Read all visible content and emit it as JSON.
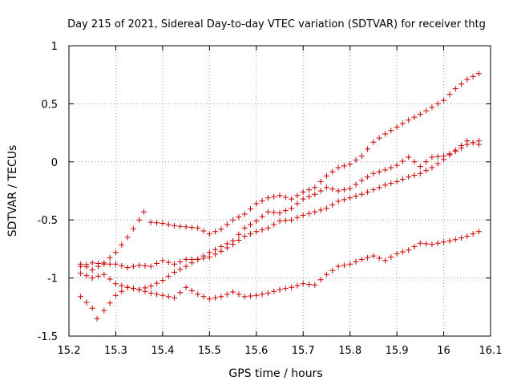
{
  "chart_data": {
    "type": "scatter",
    "title": "Day 215 of 2021, Sidereal Day-to-day VTEC variation (SDTVAR) for receiver thtg",
    "xlabel": "GPS time / hours",
    "ylabel": "SDTVAR / TECUs",
    "xlim": [
      15.2,
      16.1
    ],
    "ylim": [
      -1.5,
      1.0
    ],
    "xticks": [
      15.2,
      15.3,
      15.4,
      15.5,
      15.6,
      15.7,
      15.8,
      15.9,
      16.0,
      16.1
    ],
    "xtick_labels": [
      "15.2",
      "15.3",
      "15.4",
      "15.5",
      "15.6",
      "15.7",
      "15.8",
      "15.9",
      "16",
      "16.1"
    ],
    "yticks": [
      -1.5,
      -1.0,
      -0.5,
      0.0,
      0.5,
      1.0
    ],
    "ytick_labels": [
      "-1.5",
      "-1",
      "-0.5",
      "0",
      "0.5",
      "1"
    ],
    "grid": true,
    "marker": "+",
    "color": "#cc0000",
    "series": [
      {
        "x": [
          15.225,
          15.25,
          15.275,
          15.3,
          15.325,
          15.35,
          15.36,
          15.375,
          15.4,
          15.425,
          15.45,
          15.475,
          15.5,
          15.525,
          15.55,
          15.575,
          15.6,
          15.625,
          15.65,
          15.675,
          15.7,
          15.725,
          15.75,
          15.775,
          15.8,
          15.825,
          15.85,
          15.875,
          15.9,
          15.925,
          15.95,
          15.975,
          16.0,
          16.025,
          16.05,
          16.075
        ],
        "y": [
          -0.88,
          -0.93,
          -0.87,
          -0.78,
          -0.65,
          -0.5,
          -0.43,
          -0.52,
          -0.53,
          -0.55,
          -0.56,
          -0.57,
          -0.62,
          -0.58,
          -0.5,
          -0.45,
          -0.36,
          -0.31,
          -0.29,
          -0.32,
          -0.26,
          -0.22,
          -0.12,
          -0.05,
          -0.02,
          0.05,
          0.17,
          0.24,
          0.3,
          0.36,
          0.41,
          0.47,
          0.53,
          0.63,
          0.71,
          0.76
        ]
      },
      {
        "x": [
          15.225,
          15.25,
          15.275,
          15.3,
          15.325,
          15.35,
          15.375,
          15.4,
          15.425,
          15.45,
          15.475,
          15.5,
          15.525,
          15.55,
          15.575,
          15.6,
          15.625,
          15.65,
          15.675,
          15.7,
          15.725,
          15.75,
          15.775,
          15.8,
          15.825,
          15.85,
          15.875,
          15.9,
          15.925,
          15.95,
          15.975,
          16.0,
          16.025,
          16.05,
          16.075
        ],
        "y": [
          -0.96,
          -1.0,
          -0.97,
          -1.05,
          -1.08,
          -1.1,
          -1.07,
          -1.02,
          -0.95,
          -0.9,
          -0.84,
          -0.78,
          -0.73,
          -0.68,
          -0.57,
          -0.51,
          -0.43,
          -0.44,
          -0.4,
          -0.32,
          -0.28,
          -0.22,
          -0.25,
          -0.23,
          -0.16,
          -0.1,
          -0.07,
          -0.03,
          0.04,
          -0.04,
          0.04,
          0.05,
          0.09,
          0.15,
          0.18
        ]
      },
      {
        "x": [
          15.225,
          15.25,
          15.275,
          15.3,
          15.325,
          15.35,
          15.375,
          15.4,
          15.425,
          15.45,
          15.475,
          15.5,
          15.525,
          15.55,
          15.575,
          15.6,
          15.625,
          15.65,
          15.675,
          15.7,
          15.725,
          15.75,
          15.775,
          15.8,
          15.825,
          15.85,
          15.875,
          15.9,
          15.925,
          15.95,
          15.975,
          16.0,
          16.025,
          16.05,
          16.075
        ],
        "y": [
          -0.9,
          -0.87,
          -0.88,
          -0.88,
          -0.91,
          -0.89,
          -0.9,
          -0.85,
          -0.88,
          -0.84,
          -0.84,
          -0.82,
          -0.77,
          -0.71,
          -0.64,
          -0.6,
          -0.57,
          -0.51,
          -0.5,
          -0.46,
          -0.43,
          -0.4,
          -0.34,
          -0.31,
          -0.28,
          -0.24,
          -0.2,
          -0.17,
          -0.13,
          -0.1,
          -0.05,
          0.02,
          0.1,
          0.18,
          0.15
        ]
      },
      {
        "x": [
          15.225,
          15.25,
          15.26,
          15.275,
          15.3,
          15.325,
          15.35,
          15.375,
          15.4,
          15.425,
          15.45,
          15.475,
          15.5,
          15.525,
          15.55,
          15.575,
          15.6,
          15.625,
          15.65,
          15.675,
          15.7,
          15.725,
          15.75,
          15.775,
          15.8,
          15.825,
          15.85,
          15.875,
          15.9,
          15.925,
          15.95,
          15.975,
          16.0,
          16.025,
          16.05,
          16.075
        ],
        "y": [
          -1.16,
          -1.26,
          -1.35,
          -1.28,
          -1.15,
          -1.08,
          -1.1,
          -1.13,
          -1.15,
          -1.17,
          -1.08,
          -1.14,
          -1.18,
          -1.16,
          -1.12,
          -1.16,
          -1.15,
          -1.13,
          -1.1,
          -1.08,
          -1.05,
          -1.06,
          -0.97,
          -0.9,
          -0.88,
          -0.84,
          -0.81,
          -0.85,
          -0.79,
          -0.76,
          -0.7,
          -0.71,
          -0.69,
          -0.67,
          -0.64,
          -0.6
        ]
      }
    ]
  }
}
